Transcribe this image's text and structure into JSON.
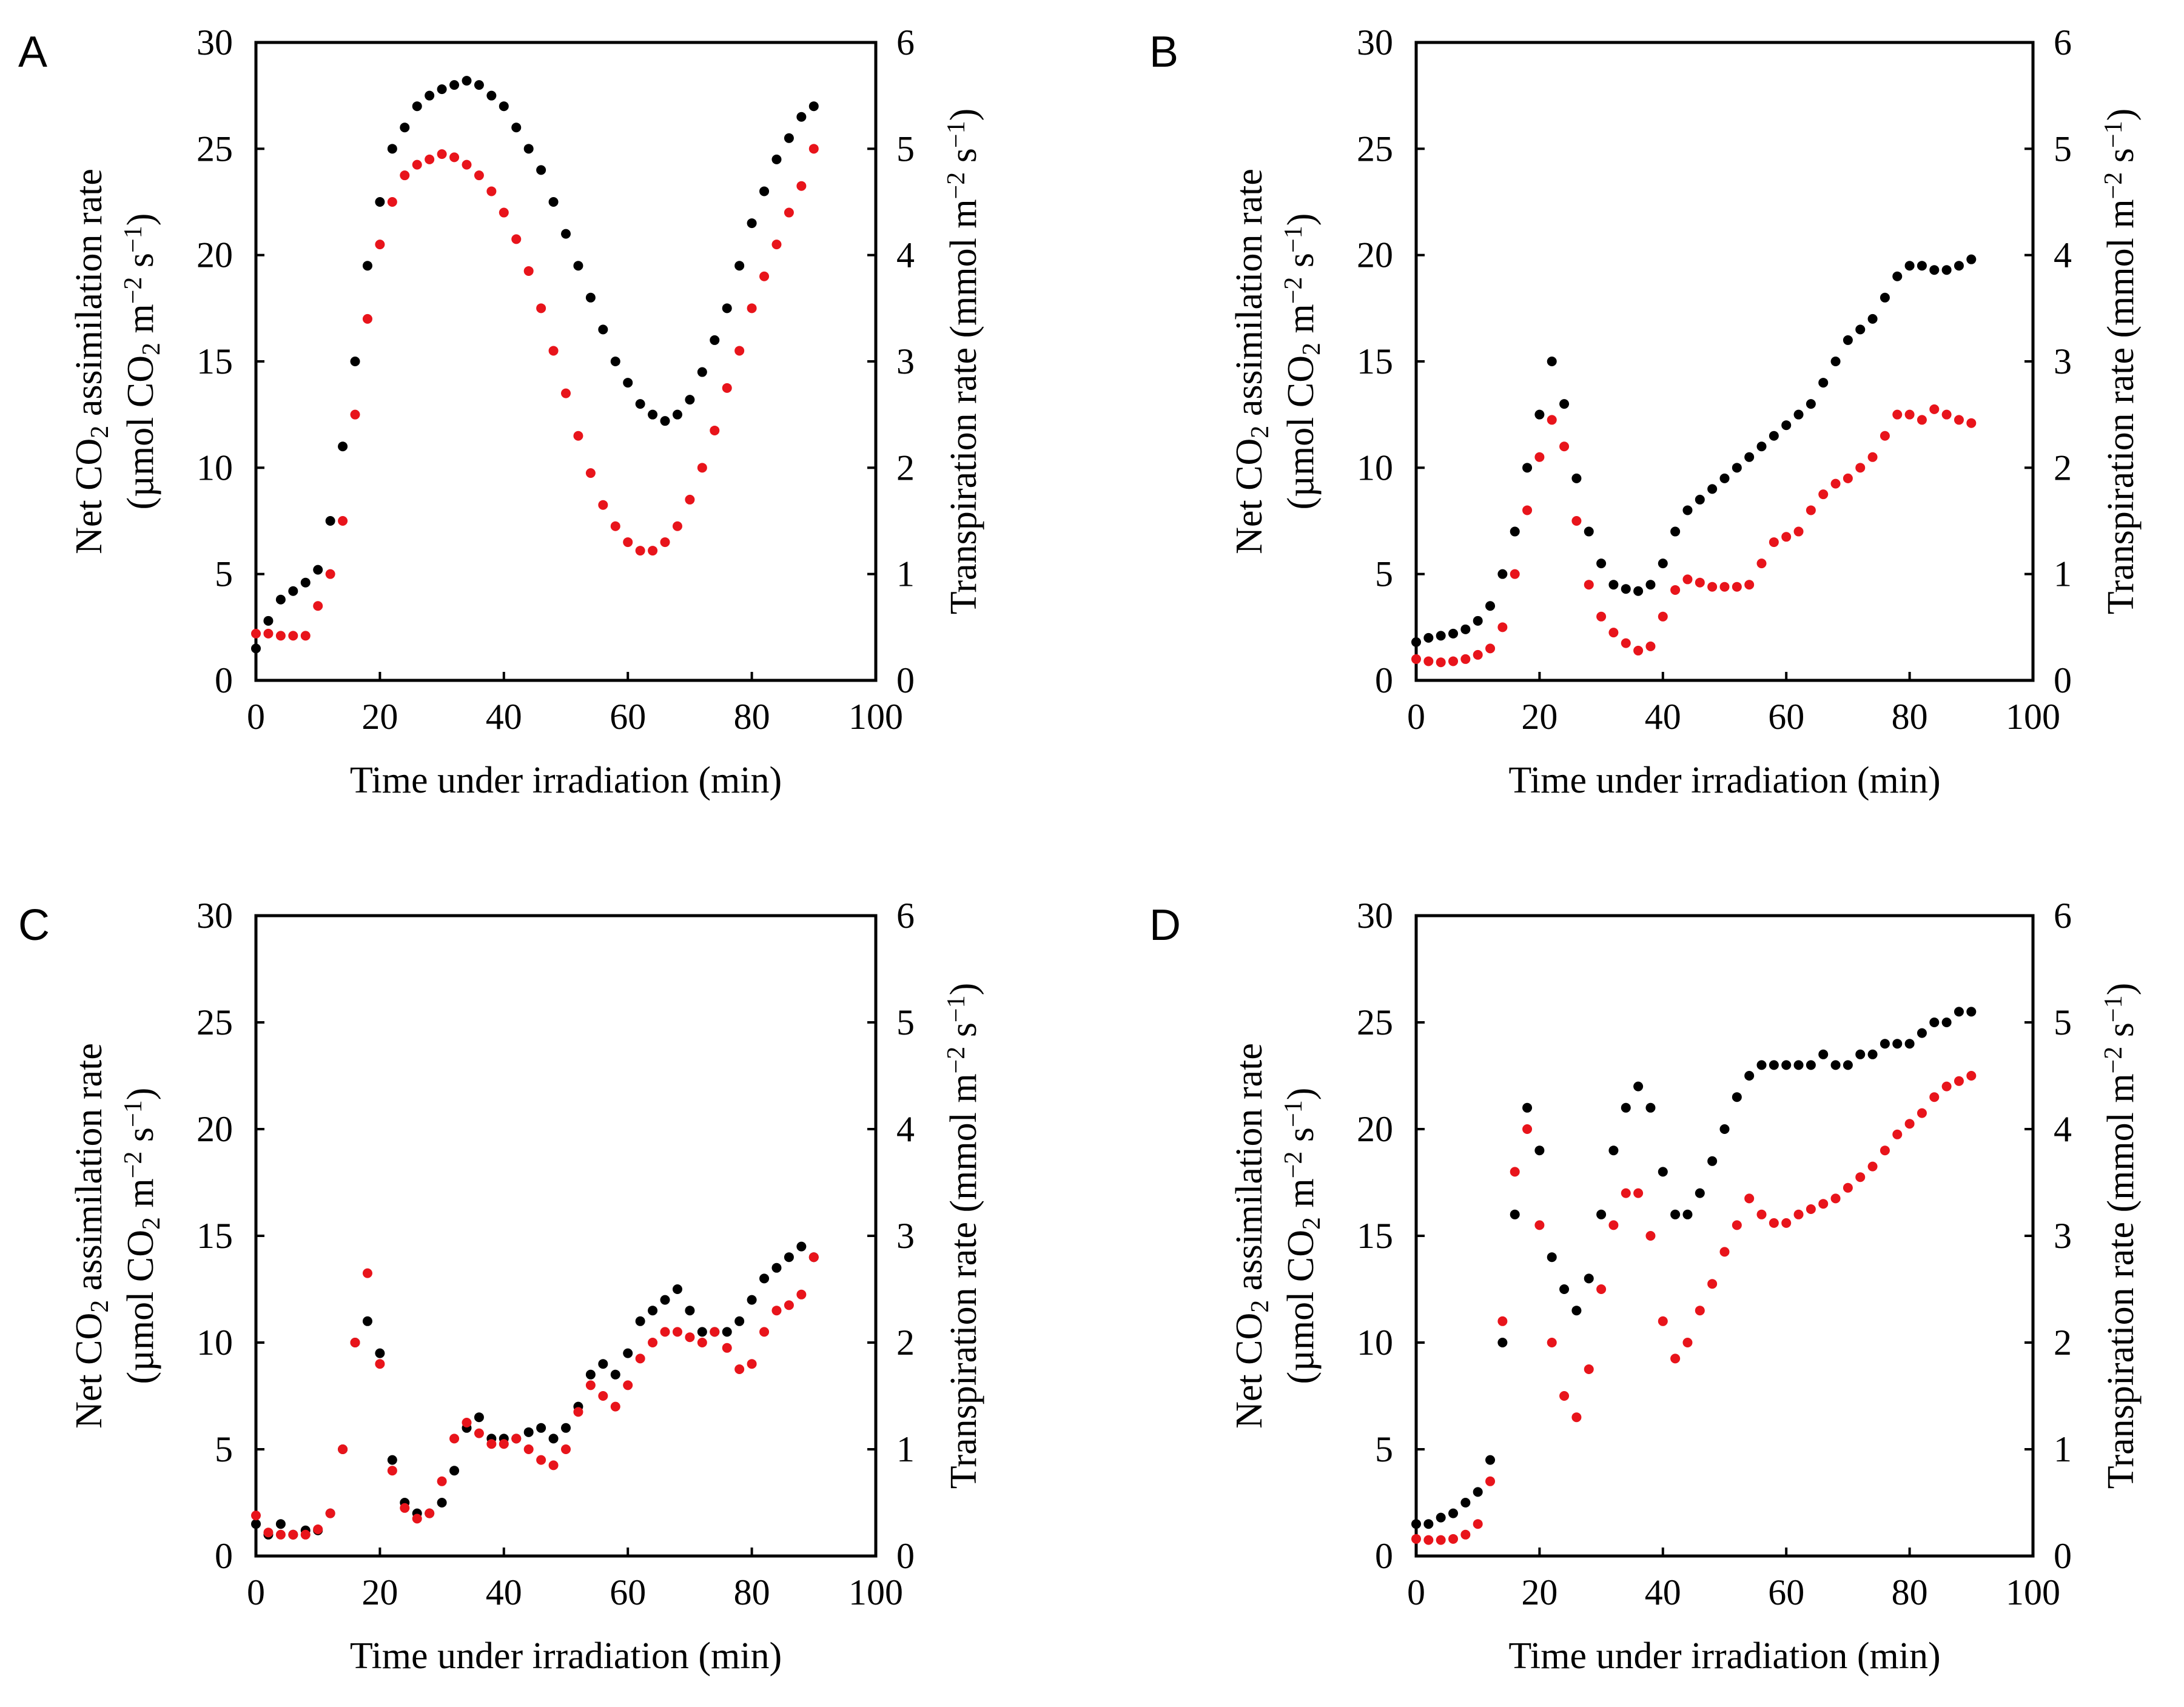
{
  "colors": {
    "assimilation": "#000000",
    "transpiration": "#e8141b"
  },
  "chart_data": [
    {
      "type": "scatter",
      "panel_label": "A",
      "xlabel": "Time under irradiation (min)",
      "ylabel_left": [
        "Net CO",
        "2",
        " assimilation rate"
      ],
      "ylabel_left_units": [
        "(µmol CO",
        "2",
        " m",
        "−2",
        " s",
        "−1",
        ")"
      ],
      "ylabel_right": [
        "Transpiration rate (mmol m",
        "−2",
        " s",
        "−1",
        ")"
      ],
      "xlim": [
        0,
        100
      ],
      "xticks": [
        "0",
        "20",
        "40",
        "60",
        "80",
        "100"
      ],
      "ylim_left": [
        0,
        30
      ],
      "yticks_left": [
        "0",
        "5",
        "10",
        "15",
        "20",
        "25",
        "30"
      ],
      "ylim_right": [
        0,
        6
      ],
      "yticks_right": [
        "0",
        "1",
        "2",
        "3",
        "4",
        "5",
        "6"
      ],
      "series": [
        {
          "name": "Net CO2 assimilation rate",
          "axis": "left",
          "color": "#000000",
          "x": [
            0,
            2,
            4,
            6,
            8,
            10,
            12,
            14,
            16,
            18,
            20,
            22,
            24,
            26,
            28,
            30,
            32,
            34,
            36,
            38,
            40,
            42,
            44,
            46,
            48,
            50,
            52,
            54,
            56,
            58,
            60,
            62,
            64,
            66,
            68,
            70,
            72,
            74,
            76,
            78,
            80,
            82,
            84,
            86,
            88,
            90
          ],
          "y": [
            1.5,
            2.8,
            3.8,
            4.2,
            4.6,
            5.2,
            7.5,
            11,
            15,
            19.5,
            22.5,
            25,
            26,
            27,
            27.5,
            27.8,
            28,
            28.2,
            28,
            27.5,
            27,
            26,
            25,
            24,
            22.5,
            21,
            19.5,
            18,
            16.5,
            15,
            14,
            13,
            12.5,
            12.2,
            12.5,
            13.2,
            14.5,
            16,
            17.5,
            19.5,
            21.5,
            23,
            24.5,
            25.5,
            26.5,
            27
          ]
        },
        {
          "name": "Transpiration rate",
          "axis": "right",
          "color": "#e8141b",
          "x": [
            0,
            2,
            4,
            6,
            8,
            10,
            12,
            14,
            16,
            18,
            20,
            22,
            24,
            26,
            28,
            30,
            32,
            34,
            36,
            38,
            40,
            42,
            44,
            46,
            48,
            50,
            52,
            54,
            56,
            58,
            60,
            62,
            64,
            66,
            68,
            70,
            72,
            74,
            76,
            78,
            80,
            82,
            84,
            86,
            88,
            90
          ],
          "y": [
            0.44,
            0.44,
            0.42,
            0.42,
            0.42,
            0.7,
            1.0,
            1.5,
            2.5,
            3.4,
            4.1,
            4.5,
            4.75,
            4.85,
            4.9,
            4.95,
            4.92,
            4.85,
            4.75,
            4.6,
            4.4,
            4.15,
            3.85,
            3.5,
            3.1,
            2.7,
            2.3,
            1.95,
            1.65,
            1.45,
            1.3,
            1.22,
            1.22,
            1.3,
            1.45,
            1.7,
            2.0,
            2.35,
            2.75,
            3.1,
            3.5,
            3.8,
            4.1,
            4.4,
            4.65,
            5.0
          ]
        }
      ]
    },
    {
      "type": "scatter",
      "panel_label": "B",
      "xlabel": "Time under irradiation (min)",
      "ylabel_left": [
        "Net CO",
        "2",
        " assimilation rate"
      ],
      "ylabel_left_units": [
        "(µmol CO",
        "2",
        " m",
        "−2",
        " s",
        "−1",
        ")"
      ],
      "ylabel_right": [
        "Transpiration rate (mmol m",
        "−2",
        " s",
        "−1",
        ")"
      ],
      "xlim": [
        0,
        100
      ],
      "xticks": [
        "0",
        "20",
        "40",
        "60",
        "80",
        "100"
      ],
      "ylim_left": [
        0,
        30
      ],
      "yticks_left": [
        "0",
        "5",
        "10",
        "15",
        "20",
        "25",
        "30"
      ],
      "ylim_right": [
        0,
        6
      ],
      "yticks_right": [
        "0",
        "1",
        "2",
        "3",
        "4",
        "5",
        "6"
      ],
      "series": [
        {
          "name": "Net CO2 assimilation rate",
          "axis": "left",
          "color": "#000000",
          "x": [
            0,
            2,
            4,
            6,
            8,
            10,
            12,
            14,
            16,
            18,
            20,
            22,
            24,
            26,
            28,
            30,
            32,
            34,
            36,
            38,
            40,
            42,
            44,
            46,
            48,
            50,
            52,
            54,
            56,
            58,
            60,
            62,
            64,
            66,
            68,
            70,
            72,
            74,
            76,
            78,
            80,
            82,
            84,
            86,
            88,
            90
          ],
          "y": [
            1.8,
            2.0,
            2.1,
            2.2,
            2.4,
            2.8,
            3.5,
            5.0,
            7.0,
            10,
            12.5,
            15,
            13,
            9.5,
            7,
            5.5,
            4.5,
            4.3,
            4.2,
            4.5,
            5.5,
            7.0,
            8.0,
            8.5,
            9.0,
            9.5,
            10,
            10.5,
            11,
            11.5,
            12,
            12.5,
            13,
            14,
            15,
            16,
            16.5,
            17,
            18,
            19,
            19.5,
            19.5,
            19.3,
            19.3,
            19.5,
            19.8
          ]
        },
        {
          "name": "Transpiration rate",
          "axis": "right",
          "color": "#e8141b",
          "x": [
            0,
            2,
            4,
            6,
            8,
            10,
            12,
            14,
            16,
            18,
            20,
            22,
            24,
            26,
            28,
            30,
            32,
            34,
            36,
            38,
            40,
            42,
            44,
            46,
            48,
            50,
            52,
            54,
            56,
            58,
            60,
            62,
            64,
            66,
            68,
            70,
            72,
            74,
            76,
            78,
            80,
            82,
            84,
            86,
            88,
            90
          ],
          "y": [
            0.2,
            0.18,
            0.17,
            0.18,
            0.2,
            0.24,
            0.3,
            0.5,
            1.0,
            1.6,
            2.1,
            2.45,
            2.2,
            1.5,
            0.9,
            0.6,
            0.45,
            0.35,
            0.28,
            0.32,
            0.6,
            0.85,
            0.95,
            0.92,
            0.88,
            0.88,
            0.88,
            0.9,
            1.1,
            1.3,
            1.35,
            1.4,
            1.6,
            1.75,
            1.85,
            1.9,
            2.0,
            2.1,
            2.3,
            2.5,
            2.5,
            2.45,
            2.55,
            2.5,
            2.45,
            2.42
          ]
        }
      ]
    },
    {
      "type": "scatter",
      "panel_label": "C",
      "xlabel": "Time under irradiation (min)",
      "ylabel_left": [
        "Net CO",
        "2",
        " assimilation rate"
      ],
      "ylabel_left_units": [
        "(µmol CO",
        "2",
        " m",
        "−2",
        " s",
        "−1",
        ")"
      ],
      "ylabel_right": [
        "Transpiration rate (mmol m",
        "−2",
        " s",
        "−1",
        ")"
      ],
      "xlim": [
        0,
        100
      ],
      "xticks": [
        "0",
        "20",
        "40",
        "60",
        "80",
        "100"
      ],
      "ylim_left": [
        0,
        30
      ],
      "yticks_left": [
        "0",
        "5",
        "10",
        "15",
        "20",
        "25",
        "30"
      ],
      "ylim_right": [
        0,
        6
      ],
      "yticks_right": [
        "0",
        "1",
        "2",
        "3",
        "4",
        "5",
        "6"
      ],
      "series": [
        {
          "name": "Net CO2 assimilation rate",
          "axis": "left",
          "color": "#000000",
          "x": [
            0,
            2,
            4,
            6,
            8,
            10,
            12,
            14,
            16,
            18,
            20,
            22,
            24,
            26,
            28,
            30,
            32,
            34,
            36,
            38,
            40,
            42,
            44,
            46,
            48,
            50,
            52,
            54,
            56,
            58,
            60,
            62,
            64,
            66,
            68,
            70,
            72,
            74,
            76,
            78,
            80,
            82,
            84,
            86,
            88,
            90
          ],
          "y": [
            1.5,
            1.0,
            1.5,
            1.0,
            1.2,
            1.2,
            2.0,
            5.0,
            10,
            11,
            9.5,
            4.5,
            2.5,
            2.0,
            2.0,
            2.5,
            4.0,
            6.0,
            6.5,
            5.5,
            5.5,
            5.5,
            5.8,
            6.0,
            5.5,
            6.0,
            7.0,
            8.5,
            9.0,
            8.5,
            9.5,
            11,
            11.5,
            12,
            12.5,
            11.5,
            10.5,
            10.5,
            10.5,
            11,
            12,
            13,
            13.5,
            14,
            14.5,
            14
          ]
        },
        {
          "name": "Transpiration rate",
          "axis": "right",
          "color": "#e8141b",
          "x": [
            0,
            2,
            4,
            6,
            8,
            10,
            12,
            14,
            16,
            18,
            20,
            22,
            24,
            26,
            28,
            30,
            32,
            34,
            36,
            38,
            40,
            42,
            44,
            46,
            48,
            50,
            52,
            54,
            56,
            58,
            60,
            62,
            64,
            66,
            68,
            70,
            72,
            74,
            76,
            78,
            80,
            82,
            84,
            86,
            88,
            90
          ],
          "y": [
            0.38,
            0.22,
            0.2,
            0.2,
            0.2,
            0.25,
            0.4,
            1.0,
            2.0,
            2.65,
            1.8,
            0.8,
            0.45,
            0.35,
            0.4,
            0.7,
            1.1,
            1.25,
            1.15,
            1.05,
            1.05,
            1.1,
            1.0,
            0.9,
            0.85,
            1.0,
            1.35,
            1.6,
            1.5,
            1.4,
            1.6,
            1.85,
            2.0,
            2.1,
            2.1,
            2.05,
            2.0,
            2.1,
            1.95,
            1.75,
            1.8,
            2.1,
            2.3,
            2.35,
            2.45,
            2.8
          ]
        }
      ]
    },
    {
      "type": "scatter",
      "panel_label": "D",
      "xlabel": "Time under irradiation (min)",
      "ylabel_left": [
        "Net CO",
        "2",
        " assimilation rate"
      ],
      "ylabel_left_units": [
        "(µmol CO",
        "2",
        " m",
        "−2",
        " s",
        "−1",
        ")"
      ],
      "ylabel_right": [
        "Transpiration rate (mmol m",
        "−2",
        " s",
        "−1",
        ")"
      ],
      "xlim": [
        0,
        100
      ],
      "xticks": [
        "0",
        "20",
        "40",
        "60",
        "80",
        "100"
      ],
      "ylim_left": [
        0,
        30
      ],
      "yticks_left": [
        "0",
        "5",
        "10",
        "15",
        "20",
        "25",
        "30"
      ],
      "ylim_right": [
        0,
        6
      ],
      "yticks_right": [
        "0",
        "1",
        "2",
        "3",
        "4",
        "5",
        "6"
      ],
      "series": [
        {
          "name": "Net CO2 assimilation rate",
          "axis": "left",
          "color": "#000000",
          "x": [
            0,
            2,
            4,
            6,
            8,
            10,
            12,
            14,
            16,
            18,
            20,
            22,
            24,
            26,
            28,
            30,
            32,
            34,
            36,
            38,
            40,
            42,
            44,
            46,
            48,
            50,
            52,
            54,
            56,
            58,
            60,
            62,
            64,
            66,
            68,
            70,
            72,
            74,
            76,
            78,
            80,
            82,
            84,
            86,
            88,
            90
          ],
          "y": [
            1.5,
            1.5,
            1.8,
            2.0,
            2.5,
            3.0,
            4.5,
            10,
            16,
            21,
            19,
            14,
            12.5,
            11.5,
            13,
            16,
            19,
            21,
            22,
            21,
            18,
            16,
            16,
            17,
            18.5,
            20,
            21.5,
            22.5,
            23,
            23,
            23,
            23,
            23,
            23.5,
            23,
            23,
            23.5,
            23.5,
            24,
            24,
            24,
            24.5,
            25,
            25,
            25.5,
            25.5
          ]
        },
        {
          "name": "Transpiration rate",
          "axis": "right",
          "color": "#e8141b",
          "x": [
            0,
            2,
            4,
            6,
            8,
            10,
            12,
            14,
            16,
            18,
            20,
            22,
            24,
            26,
            28,
            30,
            32,
            34,
            36,
            38,
            40,
            42,
            44,
            46,
            48,
            50,
            52,
            54,
            56,
            58,
            60,
            62,
            64,
            66,
            68,
            70,
            72,
            74,
            76,
            78,
            80,
            82,
            84,
            86,
            88,
            90
          ],
          "y": [
            0.16,
            0.15,
            0.15,
            0.16,
            0.2,
            0.3,
            0.7,
            2.2,
            3.6,
            4.0,
            3.1,
            2.0,
            1.5,
            1.3,
            1.75,
            2.5,
            3.1,
            3.4,
            3.4,
            3.0,
            2.2,
            1.85,
            2.0,
            2.3,
            2.55,
            2.85,
            3.1,
            3.35,
            3.2,
            3.12,
            3.12,
            3.2,
            3.25,
            3.3,
            3.35,
            3.45,
            3.55,
            3.65,
            3.8,
            3.95,
            4.05,
            4.15,
            4.3,
            4.4,
            4.45,
            4.5
          ]
        }
      ]
    }
  ]
}
